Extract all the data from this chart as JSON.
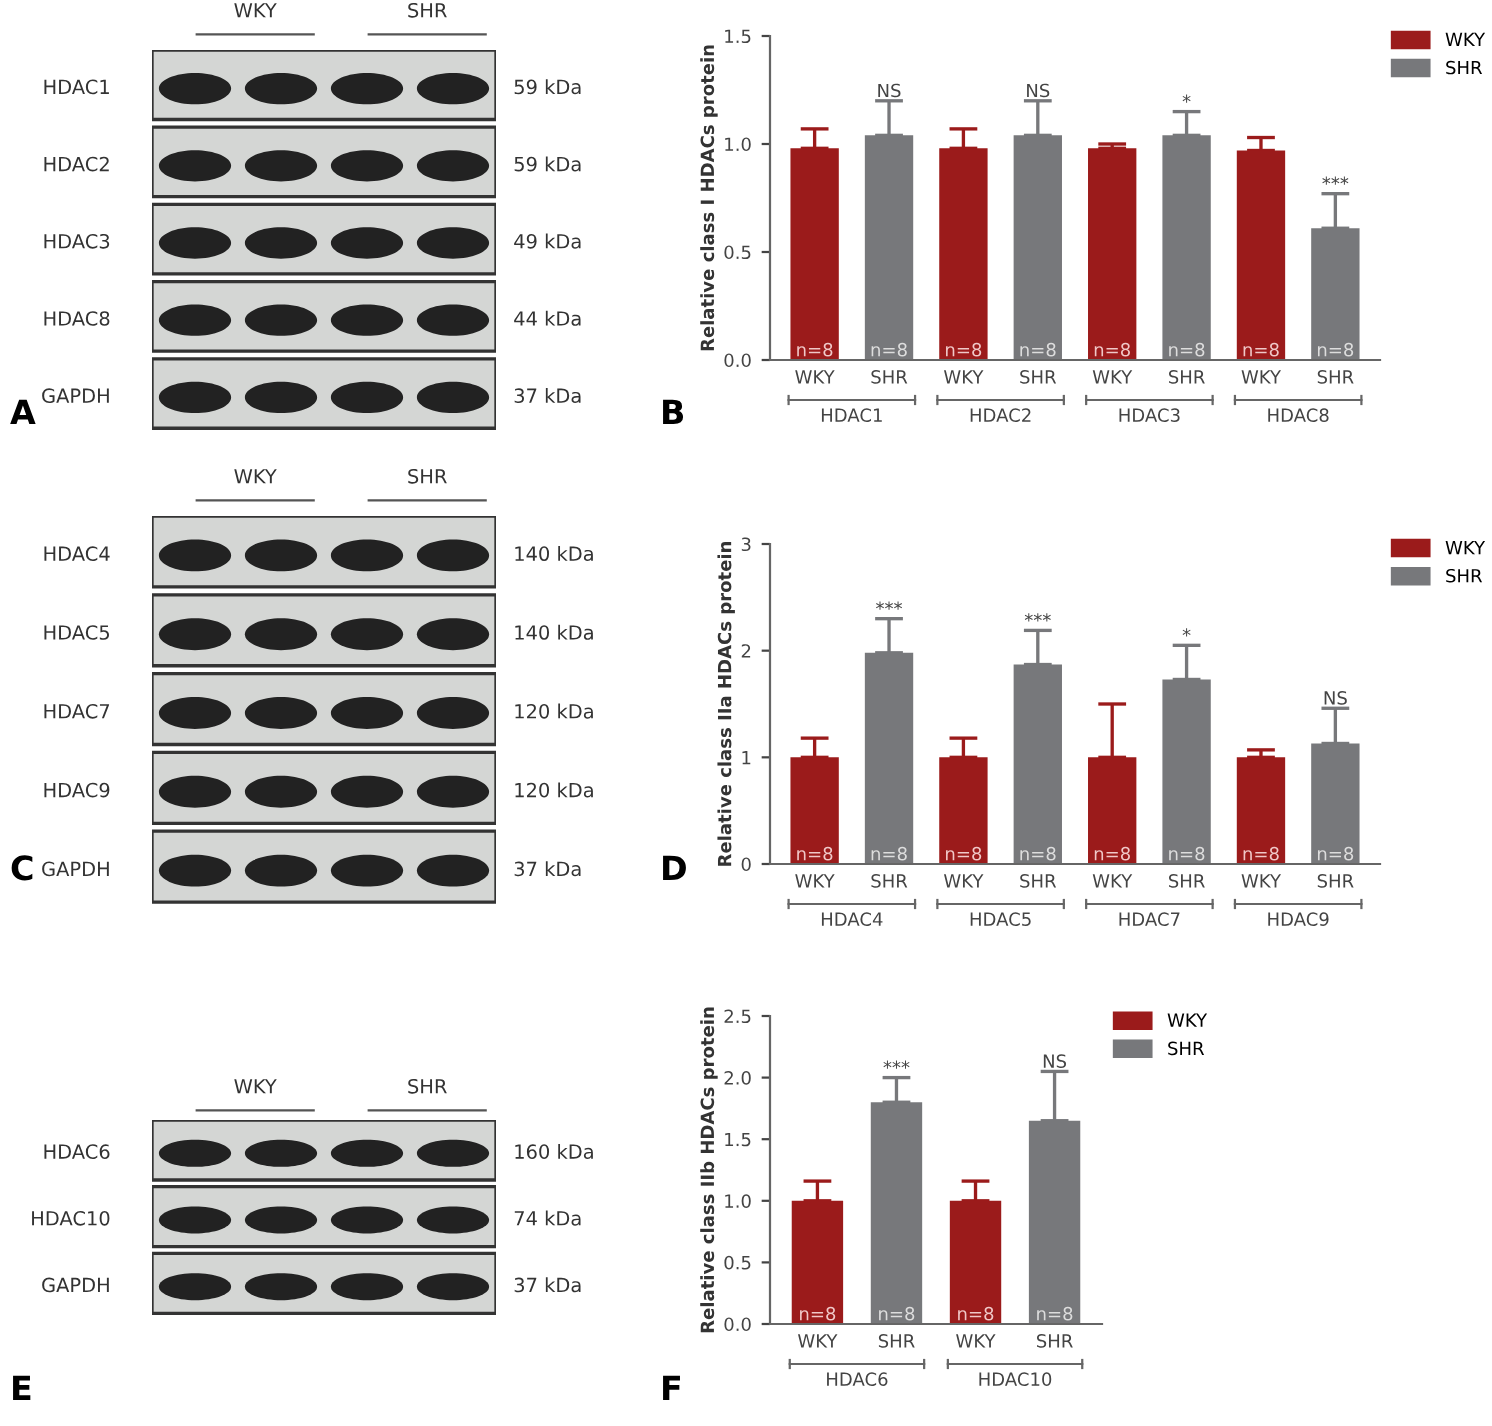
{
  "chart_data": [
    {
      "type": "other",
      "categories": [
        "WKY",
        "SHR"
      ],
      "y_categories": [
        "HDAC1",
        "HDAC2",
        "HDAC3",
        "HDAC8",
        "GAPDH"
      ],
      "y2_categories": [
        "59 kDa",
        "59 kDa",
        "49 kDa",
        "44 kDa",
        "37 kDa"
      ],
      "annotations": [
        "A"
      ]
    },
    {
      "type": "bar",
      "ylabel": "Relative class I HDACs protein",
      "categories": [
        "HDAC1",
        "HDAC2",
        "HDAC3",
        "HDAC8"
      ],
      "ylim": [
        0,
        1.5
      ],
      "yticks": [
        {
          "value": 0,
          "label": "0.0"
        },
        {
          "value": 0.5,
          "label": "0.5"
        },
        {
          "value": 1,
          "label": "1.0"
        },
        {
          "value": 1.5,
          "label": "1.5"
        }
      ],
      "legend": "top right",
      "series": [
        {
          "name": "WKY",
          "color": "#9b1b1b",
          "values": [
            0.98,
            0.98,
            0.98,
            0.97
          ],
          "errors": [
            [
              0.98,
              1.07
            ],
            [
              0.98,
              1.07
            ],
            [
              0.98,
              1.0
            ],
            [
              0.97,
              1.03
            ]
          ]
        },
        {
          "name": "SHR",
          "color": "#77787b",
          "values": [
            1.04,
            1.04,
            1.04,
            0.61
          ],
          "errors": [
            [
              1.04,
              1.2
            ],
            [
              1.04,
              1.2
            ],
            [
              1.04,
              1.15
            ],
            [
              0.61,
              0.77
            ]
          ]
        }
      ],
      "annotations": [
        "B",
        "n=8",
        "n=8",
        "n=8",
        "n=8",
        "n=8",
        "n=8",
        "n=8",
        "n=8",
        "NS",
        "NS",
        "*",
        "***"
      ]
    },
    {
      "type": "other",
      "categories": [
        "WKY",
        "SHR"
      ],
      "y_categories": [
        "HDAC4",
        "HDAC5",
        "HDAC7",
        "HDAC9",
        "GAPDH"
      ],
      "y2_categories": [
        "140 kDa",
        "140 kDa",
        "120 kDa",
        "120 kDa",
        "37 kDa"
      ],
      "annotations": [
        "C"
      ]
    },
    {
      "type": "bar",
      "ylabel": "Relative class IIa HDACs protein",
      "categories": [
        "HDAC4",
        "HDAC5",
        "HDAC7",
        "HDAC9"
      ],
      "ylim": [
        0,
        3
      ],
      "yticks": [
        0,
        1,
        2,
        3
      ],
      "legend": "top right",
      "series": [
        {
          "name": "WKY",
          "color": "#9b1b1b",
          "values": [
            1.0,
            1.0,
            1.0,
            1.0
          ],
          "errors": [
            [
              1.0,
              1.18
            ],
            [
              1.0,
              1.18
            ],
            [
              1.0,
              1.5
            ],
            [
              1.0,
              1.07
            ]
          ]
        },
        {
          "name": "SHR",
          "color": "#77787b",
          "values": [
            1.98,
            1.87,
            1.73,
            1.13
          ],
          "errors": [
            [
              1.98,
              2.3
            ],
            [
              1.87,
              2.19
            ],
            [
              1.73,
              2.05
            ],
            [
              1.13,
              1.46
            ]
          ]
        }
      ],
      "annotations": [
        "D",
        "n=8",
        "n=8",
        "n=8",
        "n=8",
        "n=8",
        "n=8",
        "n=8",
        "n=8",
        "***",
        "***",
        "*",
        "NS"
      ]
    },
    {
      "type": "other",
      "categories": [
        "WKY",
        "SHR"
      ],
      "y_categories": [
        "HDAC6",
        "HDAC10",
        "GAPDH"
      ],
      "y2_categories": [
        "160 kDa",
        "74 kDa",
        "37 kDa"
      ],
      "annotations": [
        "E"
      ]
    },
    {
      "type": "bar",
      "ylabel": "Relative class IIb HDACs protein",
      "categories": [
        "HDAC6",
        "HDAC10"
      ],
      "ylim": [
        0,
        2.5
      ],
      "yticks": [
        {
          "value": 0,
          "label": "0.0"
        },
        {
          "value": 0.5,
          "label": "0.5"
        },
        {
          "value": 1,
          "label": "1.0"
        },
        {
          "value": 1.5,
          "label": "1.5"
        },
        {
          "value": 2,
          "label": "2.0"
        },
        {
          "value": 2.5,
          "label": "2.5"
        }
      ],
      "legend": "top right",
      "series": [
        {
          "name": "WKY",
          "color": "#9b1b1b",
          "values": [
            1.0,
            1.0
          ],
          "errors": [
            [
              1.0,
              1.16
            ],
            [
              1.0,
              1.16
            ]
          ]
        },
        {
          "name": "SHR",
          "color": "#77787b",
          "values": [
            1.8,
            1.65
          ],
          "errors": [
            [
              1.8,
              2.0
            ],
            [
              1.65,
              2.05
            ]
          ]
        }
      ],
      "annotations": [
        "F",
        "n=8",
        "n=8",
        "n=8",
        "n=8",
        "***",
        "NS"
      ]
    }
  ]
}
